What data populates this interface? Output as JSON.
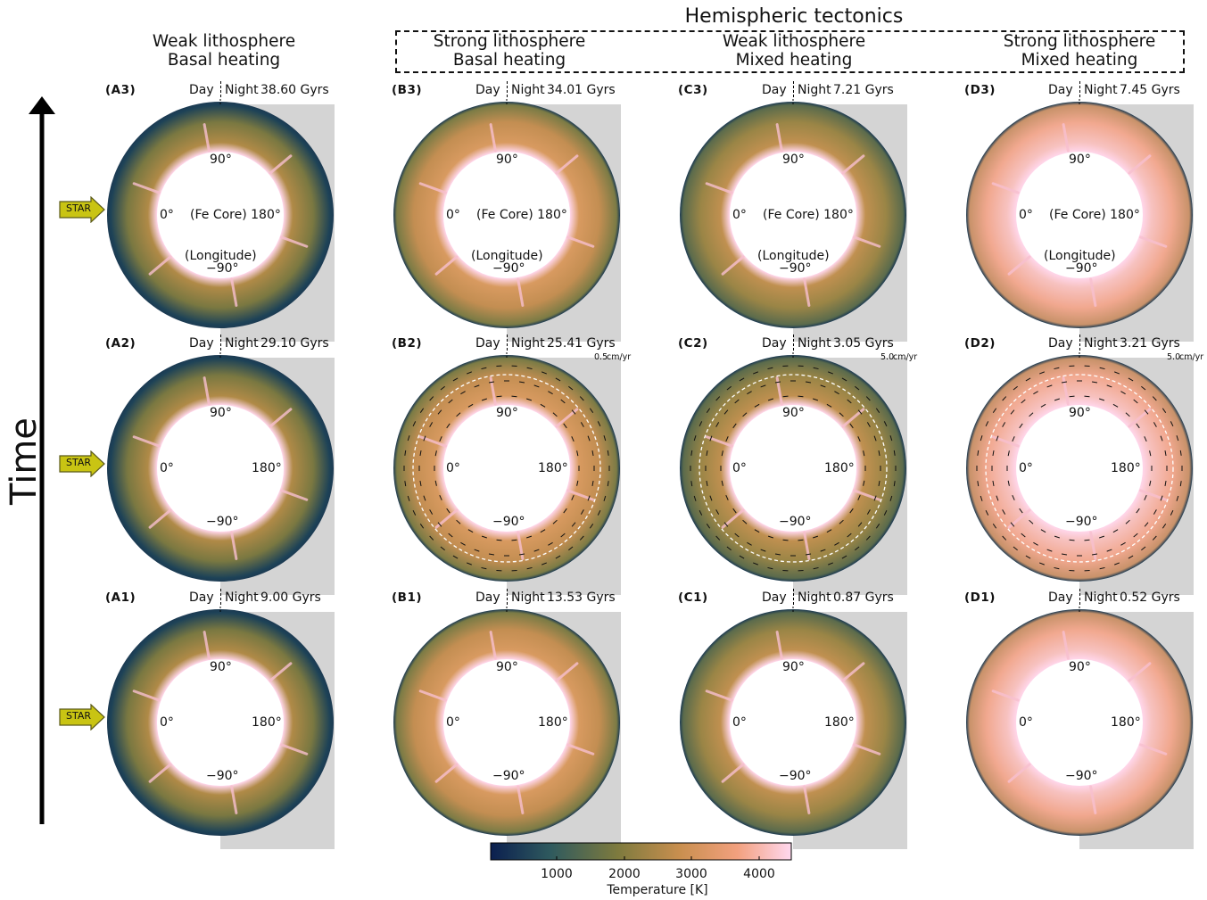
{
  "supertitle": "Hemispheric tectonics",
  "time_label": "Time",
  "star_label": "STAR",
  "column_titles": [
    {
      "line1": "Weak lithosphere",
      "line2": "Basal heating"
    },
    {
      "line1": "Strong lithosphere",
      "line2": "Basal heating"
    },
    {
      "line1": "Weak lithosphere",
      "line2": "Mixed heating"
    },
    {
      "line1": "Strong lithosphere",
      "line2": "Mixed heating"
    }
  ],
  "day": "Day",
  "night": "Night",
  "lat90": "90°",
  "lon0": "0°",
  "lon180": "180°",
  "latm90": "−90°",
  "core": "(Fe Core)",
  "longitude": "(Longitude)",
  "core180": "(Fe Core) 180°",
  "panels": {
    "A3": {
      "label": "(A3)",
      "age": "38.60 Gyrs"
    },
    "B3": {
      "label": "(B3)",
      "age": "34.01 Gyrs"
    },
    "C3": {
      "label": "(C3)",
      "age": "7.21 Gyrs"
    },
    "D3": {
      "label": "(D3)",
      "age": "7.45 Gyrs"
    },
    "A2": {
      "label": "(A2)",
      "age": "29.10 Gyrs"
    },
    "B2": {
      "label": "(B2)",
      "age": "25.41 Gyrs",
      "vel": "0.5",
      "vel_unit": "cm/yr"
    },
    "C2": {
      "label": "(C2)",
      "age": "3.05 Gyrs",
      "vel": "5.0",
      "vel_unit": "cm/yr"
    },
    "D2": {
      "label": "(D2)",
      "age": "3.21 Gyrs",
      "vel": "5.0",
      "vel_unit": "cm/yr"
    },
    "A1": {
      "label": "(A1)",
      "age": "9.00 Gyrs"
    },
    "B1": {
      "label": "(B1)",
      "age": "13.53 Gyrs"
    },
    "C1": {
      "label": "(C1)",
      "age": "0.87 Gyrs"
    },
    "D1": {
      "label": "(D1)",
      "age": "0.52 Gyrs"
    }
  },
  "colorbar": {
    "label": "Temperature [K]",
    "ticks": [
      "1000",
      "2000",
      "3000",
      "4000"
    ],
    "colors": [
      "#0b1f4f",
      "#2f5a5e",
      "#7d7a3e",
      "#c98f4f",
      "#f2a07e",
      "#ffd8ef"
    ]
  }
}
